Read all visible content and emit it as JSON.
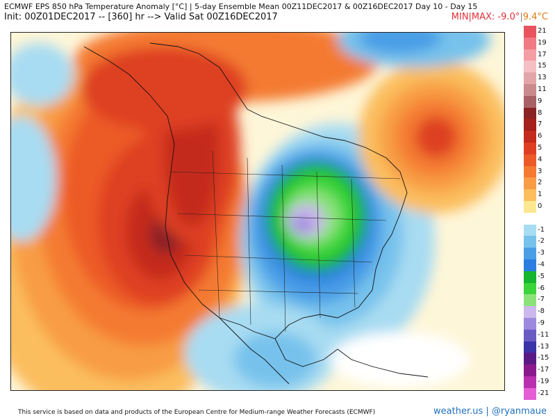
{
  "header": {
    "title": "ECMWF EPS 850 hPa Temperature Anomaly [°C] | 5-day Ensemble Mean 00Z11DEC2017 & 00Z16DEC2017   Day 10 - Day 15",
    "init": "Init: 00Z01DEC2017 -- [360] hr --> Valid Sat 00Z16DEC2017",
    "minmax_label": "MIN|MAX:",
    "min": "-9.0°",
    "sep": "|",
    "max": "9.4°C"
  },
  "legend": {
    "levels": [
      {
        "label": "21",
        "color": "#e8545e"
      },
      {
        "label": "19",
        "color": "#f07a82"
      },
      {
        "label": "17",
        "color": "#f39ea4"
      },
      {
        "label": "15",
        "color": "#f6bfc3"
      },
      {
        "label": "13",
        "color": "#e2a6a8"
      },
      {
        "label": "11",
        "color": "#c98b8c"
      },
      {
        "label": "9",
        "color": "#a86265"
      },
      {
        "label": "8",
        "color": "#8a2326"
      },
      {
        "label": "7",
        "color": "#a5211c"
      },
      {
        "label": "6",
        "color": "#c42b1c"
      },
      {
        "label": "5",
        "color": "#de3f22"
      },
      {
        "label": "4",
        "color": "#ec5a28"
      },
      {
        "label": "3",
        "color": "#f47a32"
      },
      {
        "label": "2",
        "color": "#f89c45"
      },
      {
        "label": "1",
        "color": "#fbbe5e"
      },
      {
        "label": "0",
        "color": "#fde890"
      },
      {
        "label": "",
        "color": "#ffffff"
      },
      {
        "label": "-1",
        "color": "#a8dcf2"
      },
      {
        "label": "-2",
        "color": "#77c2ec"
      },
      {
        "label": "-3",
        "color": "#4a9ee6"
      },
      {
        "label": "-4",
        "color": "#2c7de0"
      },
      {
        "label": "-5",
        "color": "#14b52f"
      },
      {
        "label": "-6",
        "color": "#3bd43b"
      },
      {
        "label": "-7",
        "color": "#8ce27a"
      },
      {
        "label": "-8",
        "color": "#cbb8ec"
      },
      {
        "label": "-9",
        "color": "#9d8ade"
      },
      {
        "label": "-11",
        "color": "#6a5bc4"
      },
      {
        "label": "-13",
        "color": "#3b33a8"
      },
      {
        "label": "-15",
        "color": "#5a1a86"
      },
      {
        "label": "-17",
        "color": "#8a1a8c"
      },
      {
        "label": "-19",
        "color": "#b82fb0"
      },
      {
        "label": "-21",
        "color": "#e35fd3"
      }
    ]
  },
  "footer": {
    "text": "This service is based on data and products of the European Centre for Medium-range Weather Forecasts (ECMWF)",
    "brand": "weather.us | @ryanmaue"
  }
}
